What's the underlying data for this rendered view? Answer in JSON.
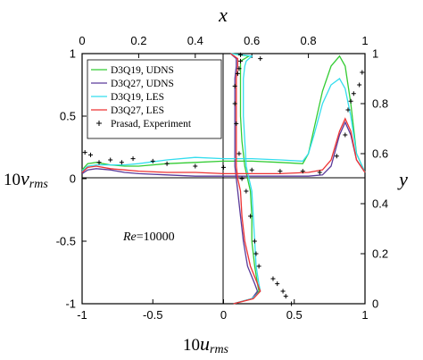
{
  "chart_data": {
    "type": "line",
    "annotation": {
      "prefix": "Re",
      "text": "=10000"
    },
    "axes": {
      "bottom": {
        "label_prefix": "10",
        "label_main": "u",
        "label_sub": "rms",
        "range": [
          -1,
          1
        ],
        "ticks": [
          "-1",
          "-0.5",
          "0",
          "0.5",
          "1"
        ]
      },
      "left": {
        "label_prefix": "10",
        "label_main": "v",
        "label_sub": "rms",
        "range": [
          -1,
          1
        ],
        "ticks": [
          "-1",
          "-0.5",
          "0",
          "0.5",
          "1"
        ]
      },
      "top": {
        "label": "x",
        "range": [
          0,
          1
        ],
        "ticks": [
          "0",
          "0.2",
          "0.4",
          "0.6",
          "0.8",
          "1"
        ]
      },
      "right": {
        "label": "y",
        "range": [
          0,
          1
        ],
        "ticks": [
          "0",
          "0.2",
          "0.4",
          "0.6",
          "0.8",
          "1"
        ]
      }
    },
    "grid": false,
    "legend_position": "top-left",
    "horizontal_profile_note": "v_rms along horizontal centerline: x from top axis, 10v_rms on left axis",
    "vertical_profile_note": "u_rms along vertical centerline: 10u_rms on bottom axis, y on right axis",
    "series": [
      {
        "name": "D3Q19,  UDNS",
        "color": "#33cc33",
        "hx": [
          0,
          0.02,
          0.05,
          0.1,
          0.15,
          0.2,
          0.3,
          0.4,
          0.5,
          0.6,
          0.7,
          0.78,
          0.8,
          0.82,
          0.85,
          0.88,
          0.91,
          0.93,
          0.95,
          0.97,
          1.0
        ],
        "hv": [
          0.07,
          0.12,
          0.13,
          0.11,
          0.1,
          0.1,
          0.12,
          0.13,
          0.14,
          0.14,
          0.13,
          0.12,
          0.2,
          0.4,
          0.7,
          0.9,
          0.98,
          0.9,
          0.6,
          0.2,
          0.05
        ],
        "vu": [
          0.07,
          0.2,
          0.25,
          0.24,
          0.22,
          0.2,
          0.2,
          0.19,
          0.17,
          0.15,
          0.13,
          0.12,
          0.12,
          0.12,
          0.12,
          0.12,
          0.15,
          0.18,
          0.05
        ],
        "vy": [
          0.0,
          0.02,
          0.05,
          0.08,
          0.15,
          0.25,
          0.35,
          0.45,
          0.5,
          0.55,
          0.65,
          0.75,
          0.85,
          0.9,
          0.94,
          0.97,
          0.98,
          0.99,
          1.0
        ]
      },
      {
        "name": "D3Q27,  UDNS",
        "color": "#5a3a9a",
        "hx": [
          0,
          0.02,
          0.05,
          0.1,
          0.15,
          0.2,
          0.3,
          0.4,
          0.5,
          0.6,
          0.7,
          0.8,
          0.85,
          0.88,
          0.91,
          0.93,
          0.95,
          0.97,
          1.0
        ],
        "hv": [
          0.04,
          0.07,
          0.08,
          0.07,
          0.05,
          0.04,
          0.03,
          0.02,
          0.02,
          0.02,
          0.02,
          0.02,
          0.03,
          0.1,
          0.35,
          0.45,
          0.35,
          0.15,
          0.05
        ],
        "vu": [
          0.07,
          0.2,
          0.24,
          0.22,
          0.17,
          0.14,
          0.12,
          0.1,
          0.09,
          0.08,
          0.08,
          0.08,
          0.08,
          0.08,
          0.09,
          0.09,
          0.05
        ],
        "vy": [
          0.0,
          0.02,
          0.05,
          0.08,
          0.15,
          0.25,
          0.35,
          0.45,
          0.5,
          0.55,
          0.65,
          0.75,
          0.85,
          0.9,
          0.95,
          0.98,
          1.0
        ]
      },
      {
        "name": "D3Q19,  LES",
        "color": "#33ddee",
        "hx": [
          0,
          0.02,
          0.05,
          0.1,
          0.15,
          0.2,
          0.3,
          0.4,
          0.5,
          0.6,
          0.7,
          0.78,
          0.8,
          0.82,
          0.85,
          0.88,
          0.91,
          0.93,
          0.95,
          0.97,
          1.0
        ],
        "hv": [
          0.06,
          0.1,
          0.11,
          0.11,
          0.11,
          0.12,
          0.15,
          0.17,
          0.16,
          0.16,
          0.15,
          0.14,
          0.2,
          0.35,
          0.6,
          0.75,
          0.8,
          0.72,
          0.5,
          0.2,
          0.05
        ],
        "vu": [
          0.07,
          0.2,
          0.26,
          0.25,
          0.23,
          0.22,
          0.21,
          0.2,
          0.18,
          0.16,
          0.15,
          0.14,
          0.14,
          0.14,
          0.15,
          0.16,
          0.2,
          0.05
        ],
        "vy": [
          0.0,
          0.02,
          0.05,
          0.08,
          0.15,
          0.25,
          0.35,
          0.45,
          0.5,
          0.55,
          0.65,
          0.75,
          0.85,
          0.9,
          0.95,
          0.97,
          0.99,
          1.0
        ]
      },
      {
        "name": "D3Q27,  LES",
        "color": "#ee3333",
        "hx": [
          0,
          0.02,
          0.05,
          0.1,
          0.15,
          0.2,
          0.3,
          0.4,
          0.5,
          0.6,
          0.7,
          0.8,
          0.85,
          0.88,
          0.91,
          0.93,
          0.95,
          0.97,
          1.0
        ],
        "hv": [
          0.05,
          0.09,
          0.1,
          0.08,
          0.07,
          0.06,
          0.05,
          0.05,
          0.04,
          0.04,
          0.04,
          0.05,
          0.07,
          0.15,
          0.38,
          0.48,
          0.38,
          0.15,
          0.05
        ],
        "vu": [
          0.07,
          0.21,
          0.26,
          0.24,
          0.19,
          0.15,
          0.13,
          0.12,
          0.1,
          0.09,
          0.09,
          0.09,
          0.09,
          0.09,
          0.1,
          0.1,
          0.05
        ],
        "vy": [
          0.0,
          0.02,
          0.05,
          0.08,
          0.15,
          0.25,
          0.35,
          0.45,
          0.5,
          0.55,
          0.65,
          0.75,
          0.85,
          0.9,
          0.95,
          0.98,
          1.0
        ]
      }
    ],
    "experiment": {
      "name": "Prasad,  Experiment",
      "h_points": [
        [
          0.01,
          0.21
        ],
        [
          0.03,
          0.19
        ],
        [
          0.06,
          0.13
        ],
        [
          0.1,
          0.15
        ],
        [
          0.14,
          0.13
        ],
        [
          0.18,
          0.16
        ],
        [
          0.25,
          0.14
        ],
        [
          0.3,
          0.12
        ],
        [
          0.4,
          0.1
        ],
        [
          0.5,
          0.09
        ],
        [
          0.6,
          0.07
        ],
        [
          0.7,
          0.06
        ],
        [
          0.78,
          0.06
        ],
        [
          0.84,
          0.05
        ],
        [
          0.9,
          0.18
        ],
        [
          0.93,
          0.35
        ],
        [
          0.94,
          0.55
        ],
        [
          0.95,
          0.62
        ],
        [
          0.96,
          0.68
        ],
        [
          0.98,
          0.75
        ],
        [
          0.99,
          0.85
        ]
      ],
      "v_points": [
        [
          0.48,
          0.0
        ],
        [
          0.44,
          0.03
        ],
        [
          0.42,
          0.05
        ],
        [
          0.38,
          0.08
        ],
        [
          0.35,
          0.1
        ],
        [
          0.25,
          0.15
        ],
        [
          0.23,
          0.2
        ],
        [
          0.22,
          0.25
        ],
        [
          0.19,
          0.35
        ],
        [
          0.16,
          0.45
        ],
        [
          0.13,
          0.5
        ],
        [
          0.11,
          0.6
        ],
        [
          0.09,
          0.72
        ],
        [
          0.08,
          0.8
        ],
        [
          0.08,
          0.87
        ],
        [
          0.1,
          0.92
        ],
        [
          0.11,
          0.94
        ],
        [
          0.12,
          0.97
        ],
        [
          0.26,
          0.98
        ],
        [
          0.12,
          0.995
        ]
      ]
    }
  }
}
